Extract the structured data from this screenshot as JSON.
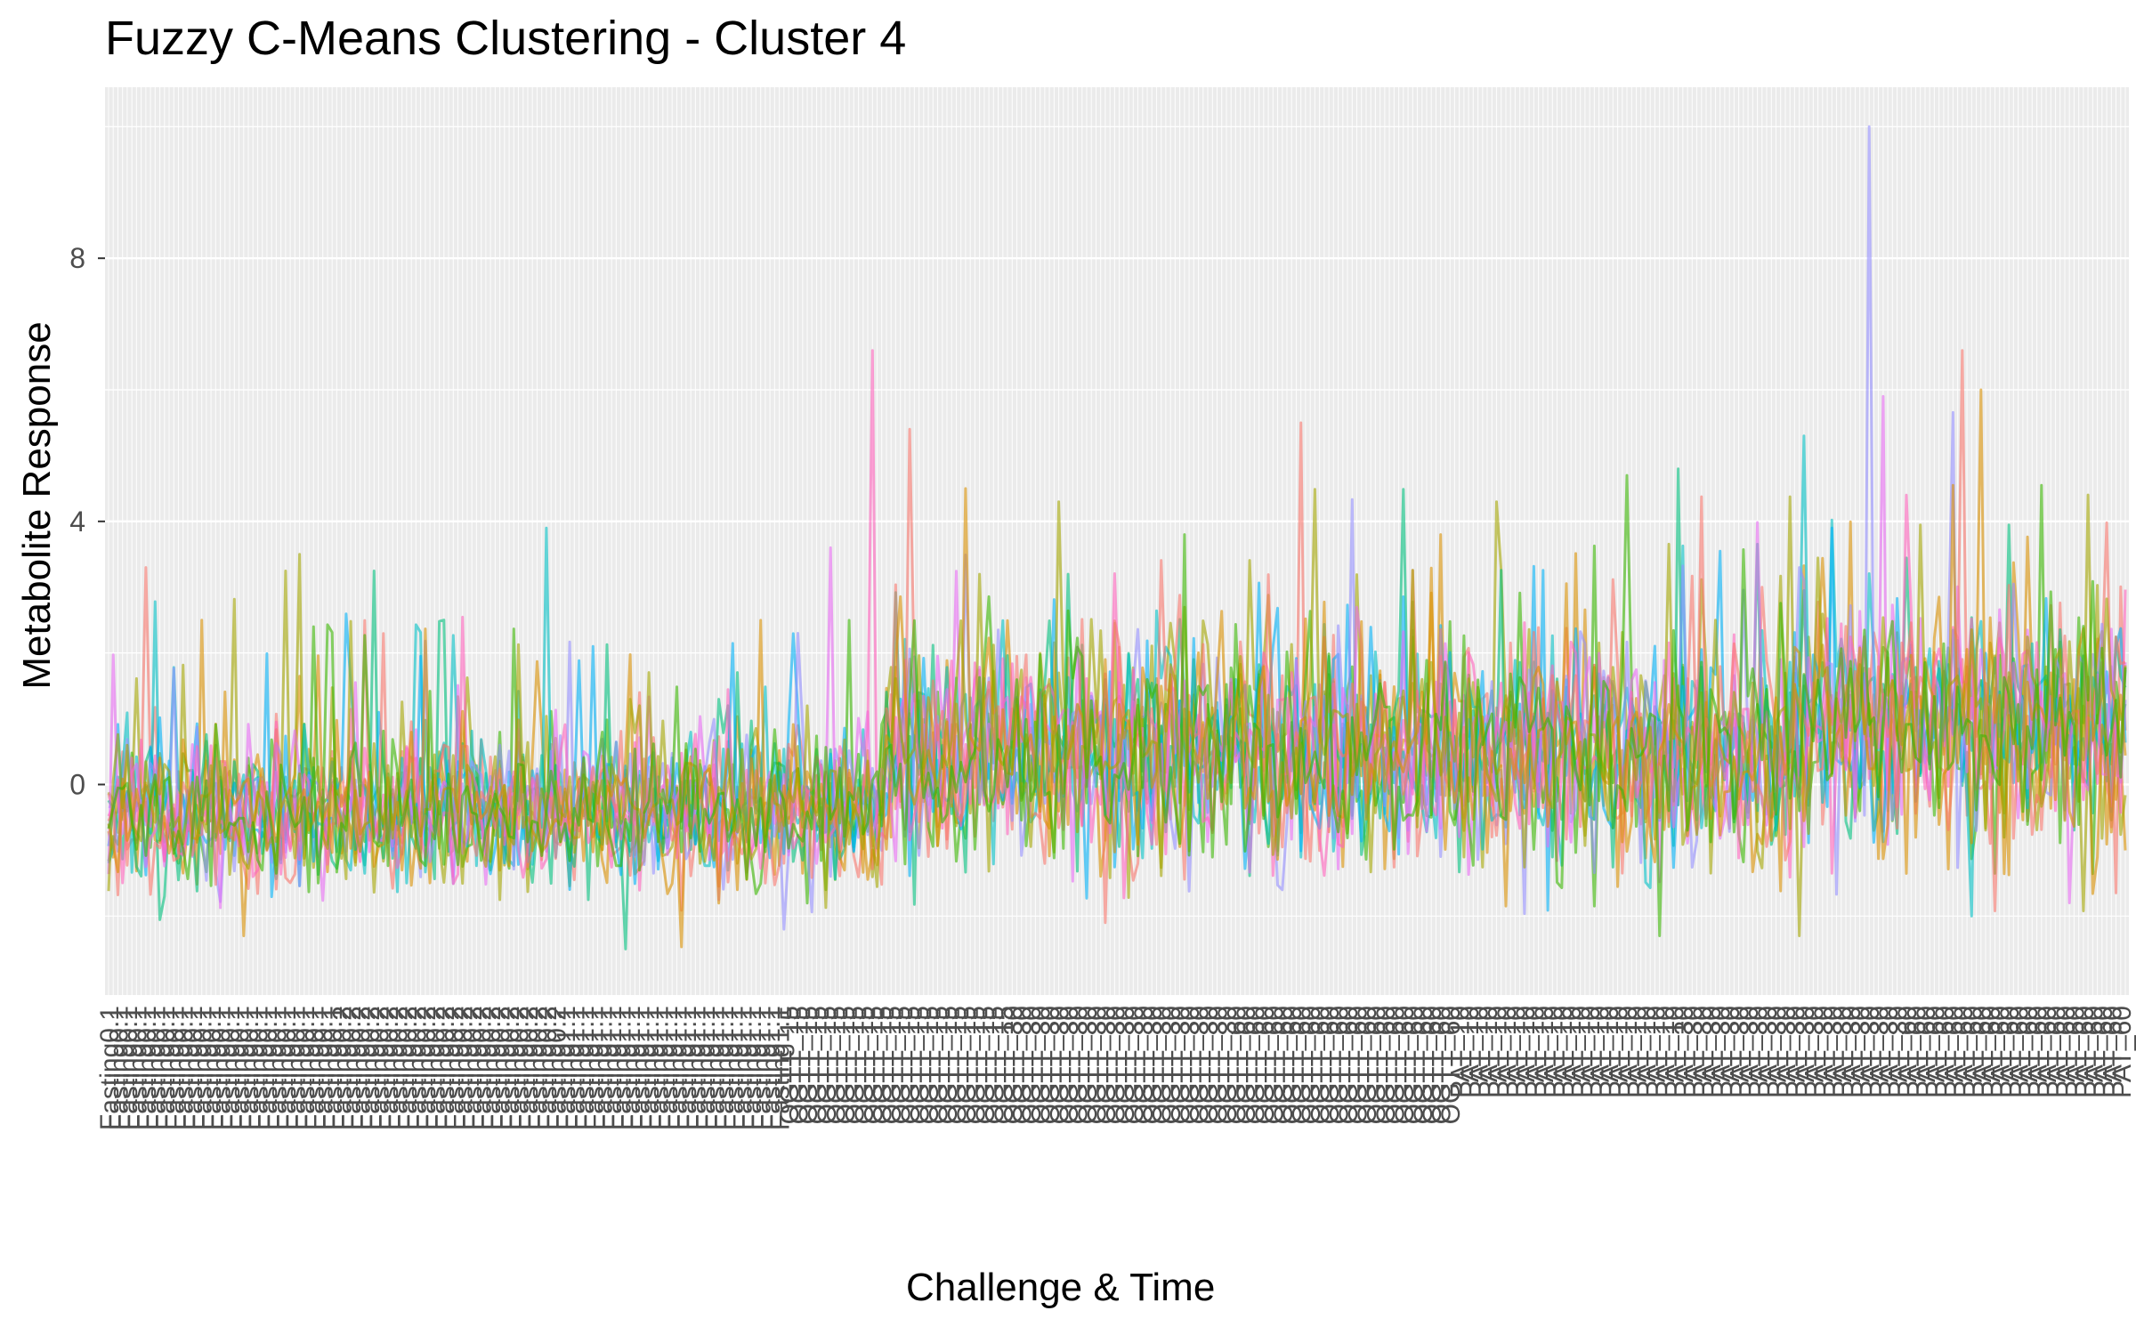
{
  "chart_data": {
    "type": "line",
    "title": "Fuzzy C-Means Clustering - Cluster 4",
    "xlabel": "Challenge & Time",
    "ylabel": "Metabolite Response",
    "ylim": [
      -3.2,
      10.6
    ],
    "y_ticks": [
      0,
      4,
      8
    ],
    "grid": true,
    "legend": "none",
    "x_count": 434,
    "x_tick_labels": [
      "Fasting0.1",
      "Fasting0.2",
      "Fasting1.1",
      "OGTT_15",
      "OGTT_30",
      "OGTT_60",
      "PAT_10",
      "PAT_30",
      "PAT_60"
    ],
    "series_colors": [
      "#F8766D",
      "#D89000",
      "#A3A500",
      "#39B600",
      "#00BF7D",
      "#00BFC4",
      "#00B0F6",
      "#9590FF",
      "#E76BF3",
      "#FF62BC"
    ],
    "n_series": 14,
    "regions": [
      {
        "start": 0,
        "end": 166,
        "mean": -0.4,
        "sd": 0.55
      },
      {
        "start": 167,
        "end": 361,
        "mean": 0.45,
        "sd": 0.85
      },
      {
        "start": 362,
        "end": 433,
        "mean": 0.9,
        "sd": 0.85
      }
    ],
    "peaks": [
      {
        "x": 8,
        "y": 3.3
      },
      {
        "x": 20,
        "y": 2.5
      },
      {
        "x": 41,
        "y": 3.5
      },
      {
        "x": 44,
        "y": 2.4
      },
      {
        "x": 72,
        "y": 2.5
      },
      {
        "x": 94,
        "y": 3.9
      },
      {
        "x": 104,
        "y": 2.1
      },
      {
        "x": 148,
        "y": 2.3
      },
      {
        "x": 155,
        "y": 3.6
      },
      {
        "x": 164,
        "y": 6.6
      },
      {
        "x": 172,
        "y": 5.4
      },
      {
        "x": 184,
        "y": 4.5
      },
      {
        "x": 204,
        "y": 4.3
      },
      {
        "x": 231,
        "y": 3.8
      },
      {
        "x": 256,
        "y": 5.5
      },
      {
        "x": 286,
        "y": 3.8
      },
      {
        "x": 298,
        "y": 4.3
      },
      {
        "x": 326,
        "y": 4.7
      },
      {
        "x": 337,
        "y": 4.8
      },
      {
        "x": 364,
        "y": 5.3
      },
      {
        "x": 370,
        "y": 3.9
      },
      {
        "x": 378,
        "y": 10.0
      },
      {
        "x": 381,
        "y": 5.9
      },
      {
        "x": 386,
        "y": 4.4
      },
      {
        "x": 398,
        "y": 6.6
      },
      {
        "x": 402,
        "y": 6.0
      }
    ],
    "dips": [
      {
        "x": 29,
        "y": -2.3
      },
      {
        "x": 111,
        "y": -2.5
      },
      {
        "x": 145,
        "y": -2.2
      },
      {
        "x": 214,
        "y": -2.1
      },
      {
        "x": 333,
        "y": -2.3
      },
      {
        "x": 363,
        "y": -2.3
      },
      {
        "x": 400,
        "y": -2.0
      },
      {
        "x": 421,
        "y": -1.8
      }
    ]
  }
}
